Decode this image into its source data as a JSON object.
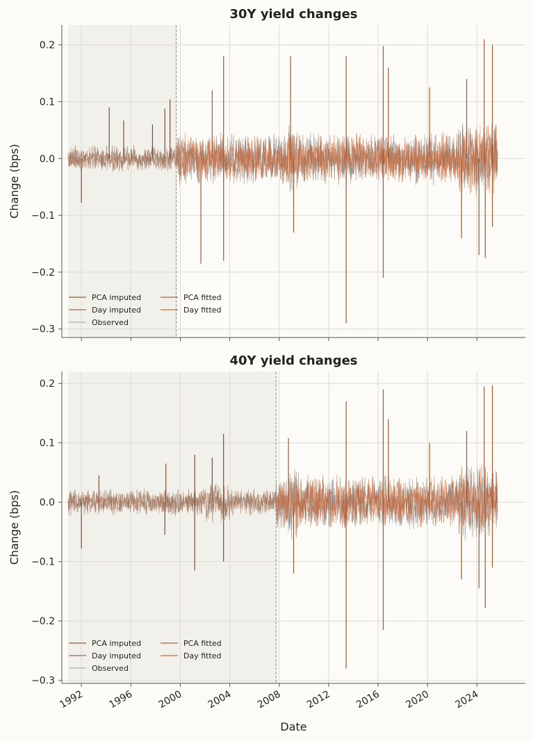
{
  "chart_data": [
    {
      "type": "line",
      "title": "30Y yield changes",
      "ylabel": "Change (bps)",
      "xlabel": "",
      "ylim": [
        -0.315,
        0.235
      ],
      "xlim": [
        "1990-06",
        "2027-12"
      ],
      "yticks": [
        -0.3,
        -0.2,
        -0.1,
        0.0,
        0.1,
        0.2
      ],
      "ytick_labels": [
        "−0.3",
        "−0.2",
        "−0.1",
        "0.0",
        "0.1",
        "0.2"
      ],
      "x_ticks": [
        "1992",
        "1996",
        "2000",
        "2004",
        "2008",
        "2012",
        "2016",
        "2020",
        "2024"
      ],
      "x_tick_labels": [],
      "imputed_region": [
        "1990-12",
        "1999-09"
      ],
      "split_date": "1999-09",
      "legend": {
        "placement": "lower-left",
        "entries": [
          "PCA imputed",
          "Day imputed",
          "Observed",
          "PCA fitted",
          "Day fitted"
        ]
      },
      "series": [
        {
          "name": "PCA imputed",
          "color": "#8b5a3c",
          "date_range": [
            "1990-12",
            "1999-09"
          ],
          "typical_abs": 0.015,
          "min": -0.08,
          "max": 0.104
        },
        {
          "name": "Day imputed",
          "color": "#9c6b55",
          "date_range": [
            "1990-12",
            "1999-09"
          ],
          "typical_abs": 0.015
        },
        {
          "name": "Observed",
          "color": "#7a7f87",
          "date_range": [
            "1999-09",
            "2025-09"
          ],
          "typical_abs": 0.03,
          "min": -0.21,
          "max": 0.2
        },
        {
          "name": "PCA fitted",
          "color": "#b0643a",
          "date_range": [
            "1999-09",
            "2025-09"
          ],
          "typical_abs": 0.03,
          "min": -0.29,
          "max": 0.21
        },
        {
          "name": "Day fitted",
          "color": "#c96a3c",
          "date_range": [
            "1999-09",
            "2025-09"
          ],
          "typical_abs": 0.03
        }
      ],
      "spikes": [
        [
          "1992-01",
          -0.078
        ],
        [
          "1994-04",
          0.09
        ],
        [
          "1995-06",
          0.067
        ],
        [
          "1997-10",
          0.06
        ],
        [
          "1998-10",
          0.088
        ],
        [
          "1999-03",
          0.104
        ],
        [
          "2001-09",
          -0.185
        ],
        [
          "2002-08",
          0.12
        ],
        [
          "2003-07",
          0.18
        ],
        [
          "2003-07",
          -0.18
        ],
        [
          "2008-12",
          0.18
        ],
        [
          "2009-03",
          -0.13
        ],
        [
          "2013-06",
          -0.29
        ],
        [
          "2013-06",
          0.18
        ],
        [
          "2016-06",
          0.198
        ],
        [
          "2016-06",
          -0.21
        ],
        [
          "2016-11",
          0.16
        ],
        [
          "2020-03",
          0.125
        ],
        [
          "2022-10",
          -0.14
        ],
        [
          "2023-03",
          0.14
        ],
        [
          "2024-03",
          -0.17
        ],
        [
          "2024-08",
          0.21
        ],
        [
          "2024-09",
          -0.175
        ],
        [
          "2025-04",
          0.2
        ],
        [
          "2025-04",
          -0.12
        ]
      ]
    },
    {
      "type": "line",
      "title": "40Y yield changes",
      "ylabel": "Change (bps)",
      "xlabel": "Date",
      "ylim": [
        -0.305,
        0.22
      ],
      "xlim": [
        "1990-06",
        "2027-12"
      ],
      "yticks": [
        -0.3,
        -0.2,
        -0.1,
        0.0,
        0.1,
        0.2
      ],
      "ytick_labels": [
        "−0.3",
        "−0.2",
        "−0.1",
        "0.0",
        "0.1",
        "0.2"
      ],
      "x_ticks": [
        "1992",
        "1996",
        "2000",
        "2004",
        "2008",
        "2012",
        "2016",
        "2020",
        "2024"
      ],
      "x_tick_labels": [
        "1992",
        "1996",
        "2000",
        "2004",
        "2008",
        "2012",
        "2016",
        "2020",
        "2024"
      ],
      "imputed_region": [
        "1990-12",
        "2007-10"
      ],
      "split_date": "2007-10",
      "legend": {
        "placement": "lower-left",
        "entries": [
          "PCA imputed",
          "Day imputed",
          "Observed",
          "PCA fitted",
          "Day fitted"
        ]
      },
      "series": [
        {
          "name": "PCA imputed",
          "color": "#8b5a3c",
          "date_range": [
            "1990-12",
            "2007-10"
          ],
          "typical_abs": 0.015,
          "min": -0.115,
          "max": 0.115
        },
        {
          "name": "Day imputed",
          "color": "#9c6b55",
          "date_range": [
            "1990-12",
            "2007-10"
          ],
          "typical_abs": 0.015
        },
        {
          "name": "Observed",
          "color": "#7a7f87",
          "date_range": [
            "2007-10",
            "2025-09"
          ],
          "typical_abs": 0.03,
          "min": -0.215,
          "max": 0.195
        },
        {
          "name": "PCA fitted",
          "color": "#b0643a",
          "date_range": [
            "2007-10",
            "2025-09"
          ],
          "typical_abs": 0.03,
          "min": -0.28,
          "max": 0.197
        },
        {
          "name": "Day fitted",
          "color": "#c96a3c",
          "date_range": [
            "2007-10",
            "2025-09"
          ],
          "typical_abs": 0.03
        }
      ],
      "spikes": [
        [
          "1992-01",
          -0.078
        ],
        [
          "1993-06",
          0.045
        ],
        [
          "1998-10",
          -0.055
        ],
        [
          "1998-11",
          0.065
        ],
        [
          "2001-03",
          -0.115
        ],
        [
          "2001-03",
          0.08
        ],
        [
          "2002-08",
          0.075
        ],
        [
          "2003-07",
          0.115
        ],
        [
          "2003-07",
          -0.1
        ],
        [
          "2008-10",
          0.108
        ],
        [
          "2009-03",
          -0.12
        ],
        [
          "2013-06",
          -0.28
        ],
        [
          "2013-06",
          0.17
        ],
        [
          "2016-06",
          0.19
        ],
        [
          "2016-06",
          -0.215
        ],
        [
          "2016-11",
          0.14
        ],
        [
          "2020-03",
          0.1
        ],
        [
          "2022-10",
          -0.13
        ],
        [
          "2023-03",
          0.12
        ],
        [
          "2024-03",
          -0.145
        ],
        [
          "2024-08",
          0.195
        ],
        [
          "2024-09",
          -0.178
        ],
        [
          "2025-04",
          0.197
        ],
        [
          "2025-04",
          -0.11
        ]
      ]
    }
  ]
}
